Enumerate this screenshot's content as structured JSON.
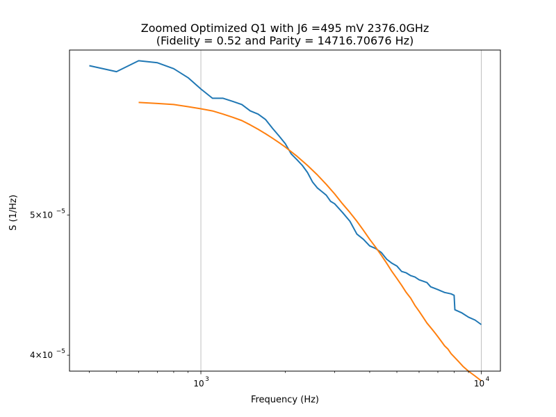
{
  "chart_data": {
    "type": "line",
    "title": "Zoomed Optimized Q1 with J6 =495 mV 2376.0GHz",
    "subtitle": "(Fidelity = 0.52 and Parity = 14716.70676 Hz)",
    "xlabel": "Frequency (Hz)",
    "ylabel": "S (1/Hz)",
    "xscale": "log",
    "yscale": "log",
    "xlim": [
      340,
      11700
    ],
    "ylim": [
      3.9e-05,
      6.5e-05
    ],
    "x_ticks": [
      {
        "base": "10",
        "exp": "3",
        "value": 1000
      },
      {
        "base": "10",
        "exp": "4",
        "value": 10000
      }
    ],
    "y_ticks": [
      {
        "mant": "5×10",
        "exp": "−5",
        "value": 5e-05
      },
      {
        "mant": "4×10",
        "exp": "−5",
        "value": 4e-05
      }
    ],
    "grid": "vertical major lines at x ticks",
    "series": [
      {
        "color": "#1f77b4",
        "x": [
          400,
          500,
          600,
          700,
          800,
          900,
          1000,
          1100,
          1200,
          1300,
          1400,
          1500,
          1600,
          1700,
          1800,
          1900,
          2000,
          2100,
          2200,
          2300,
          2400,
          2500,
          2600,
          2700,
          2800,
          2900,
          3000,
          3200,
          3400,
          3600,
          3800,
          4000,
          4200,
          4400,
          4600,
          4800,
          5000,
          5200,
          5400,
          5600,
          5800,
          6000,
          6200,
          6400,
          6600,
          6800,
          7000,
          7200,
          7400,
          7600,
          7800,
          8000,
          8050,
          8500,
          9000,
          9500,
          10000
        ],
        "y": [
          6.34e-05,
          6.28e-05,
          6.39e-05,
          6.37e-05,
          6.31e-05,
          6.22e-05,
          6.11e-05,
          6.02e-05,
          6.02e-05,
          5.99e-05,
          5.96e-05,
          5.9e-05,
          5.87e-05,
          5.82e-05,
          5.74e-05,
          5.67e-05,
          5.6e-05,
          5.51e-05,
          5.46e-05,
          5.41e-05,
          5.35e-05,
          5.27e-05,
          5.22e-05,
          5.19e-05,
          5.16e-05,
          5.11e-05,
          5.09e-05,
          5.02e-05,
          4.95e-05,
          4.85e-05,
          4.81e-05,
          4.76e-05,
          4.74e-05,
          4.71e-05,
          4.66e-05,
          4.63e-05,
          4.61e-05,
          4.57e-05,
          4.56e-05,
          4.54e-05,
          4.53e-05,
          4.51e-05,
          4.5e-05,
          4.49e-05,
          4.46e-05,
          4.45e-05,
          4.44e-05,
          4.43e-05,
          4.42e-05,
          4.415e-05,
          4.41e-05,
          4.4e-05,
          4.3e-05,
          4.28e-05,
          4.25e-05,
          4.23e-05,
          4.2e-05
        ]
      },
      {
        "color": "#ff7f0e",
        "x": [
          600,
          700,
          800,
          900,
          1000,
          1100,
          1200,
          1300,
          1400,
          1500,
          1600,
          1700,
          1800,
          1900,
          2000,
          2200,
          2400,
          2600,
          2800,
          3000,
          3200,
          3400,
          3600,
          3800,
          4000,
          4200,
          4400,
          4600,
          4800,
          5000,
          5200,
          5400,
          5600,
          5800,
          6000,
          6200,
          6400,
          6600,
          6800,
          7000,
          7200,
          7400,
          7600,
          7800,
          8000,
          8300,
          8600,
          9000,
          9500,
          10000
        ],
        "y": [
          5.98e-05,
          5.97e-05,
          5.96e-05,
          5.94e-05,
          5.92e-05,
          5.9e-05,
          5.87e-05,
          5.84e-05,
          5.81e-05,
          5.77e-05,
          5.73e-05,
          5.69e-05,
          5.65e-05,
          5.61e-05,
          5.57e-05,
          5.49e-05,
          5.41e-05,
          5.33e-05,
          5.25e-05,
          5.17e-05,
          5.09e-05,
          5.02e-05,
          4.95e-05,
          4.88e-05,
          4.81e-05,
          4.75e-05,
          4.69e-05,
          4.63e-05,
          4.57e-05,
          4.52e-05,
          4.47e-05,
          4.42e-05,
          4.38e-05,
          4.33e-05,
          4.29e-05,
          4.25e-05,
          4.21e-05,
          4.18e-05,
          4.15e-05,
          4.12e-05,
          4.09e-05,
          4.06e-05,
          4.04e-05,
          4.01e-05,
          3.99e-05,
          3.96e-05,
          3.93e-05,
          3.9e-05,
          3.87e-05,
          3.84e-05
        ]
      }
    ]
  }
}
